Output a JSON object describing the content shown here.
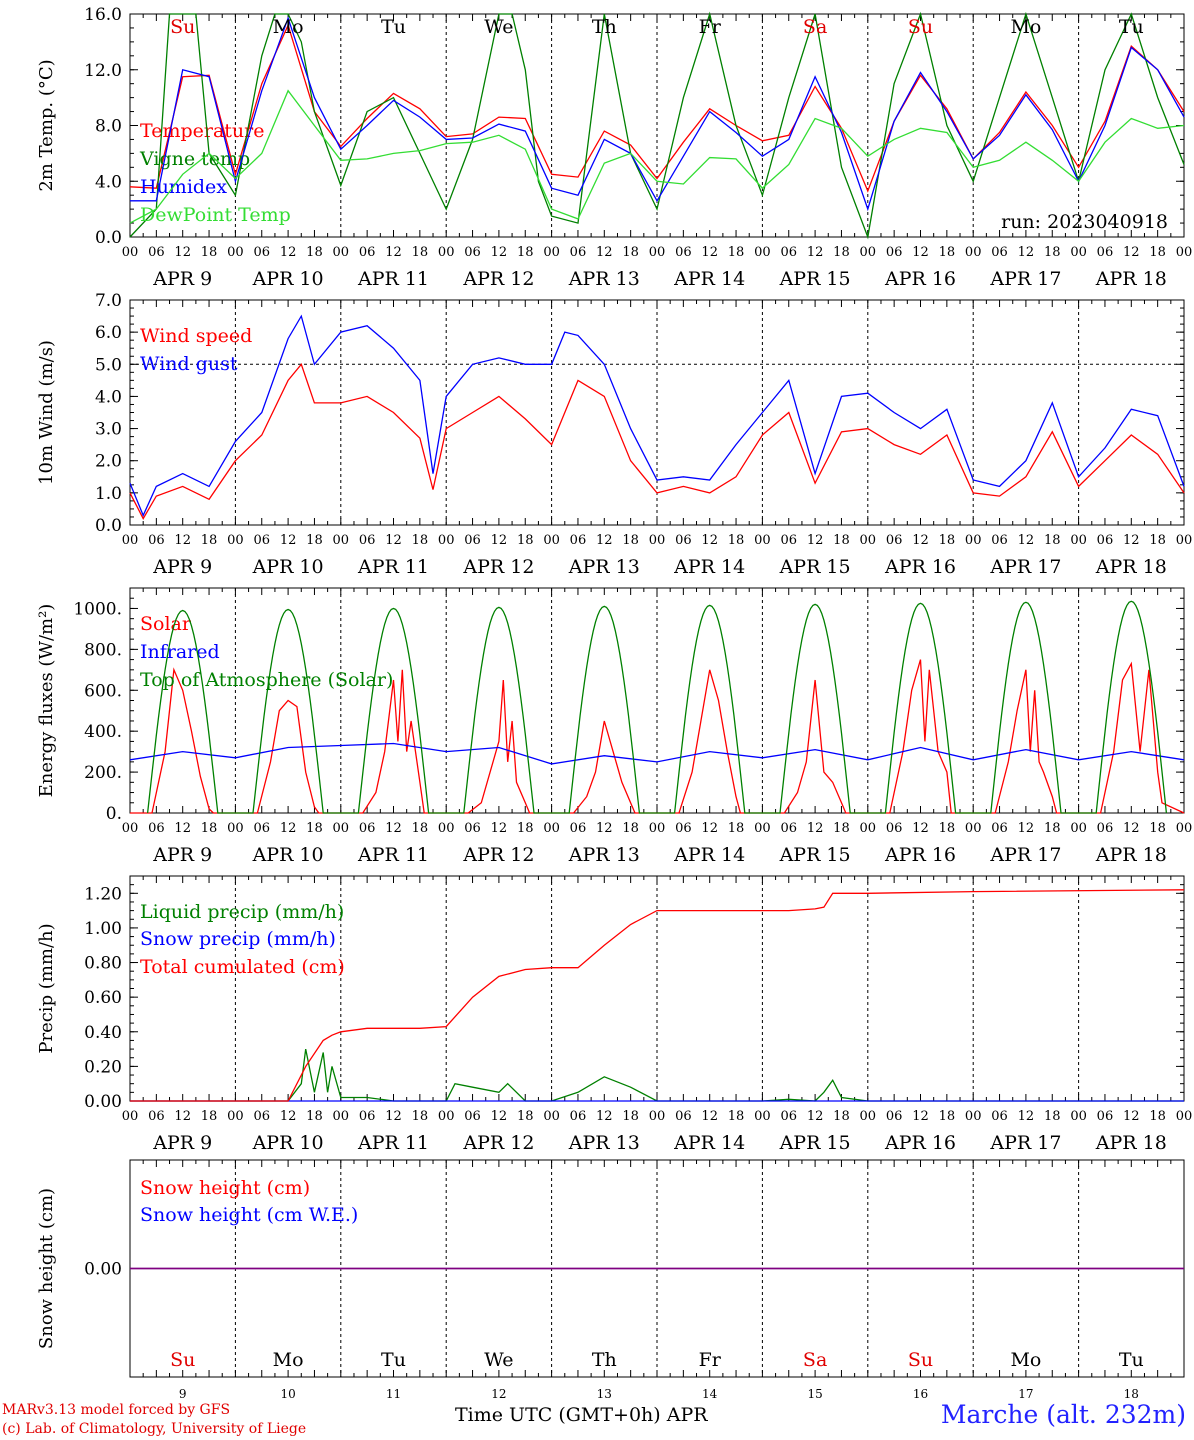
{
  "run_label": "run: 2023040918",
  "x_hours_ticks": [
    "00",
    "06",
    "12",
    "18"
  ],
  "dates": [
    "APR  9",
    "APR 10",
    "APR 11",
    "APR 12",
    "APR 13",
    "APR 14",
    "APR 15",
    "APR 16",
    "APR 17",
    "APR 18"
  ],
  "weekdays": [
    {
      "label": "Su",
      "color": "#e00000"
    },
    {
      "label": "Mo",
      "color": "#000000"
    },
    {
      "label": "Tu",
      "color": "#000000"
    },
    {
      "label": "We",
      "color": "#000000"
    },
    {
      "label": "Th",
      "color": "#000000"
    },
    {
      "label": "Fr",
      "color": "#000000"
    },
    {
      "label": "Sa",
      "color": "#e00000"
    },
    {
      "label": "Su",
      "color": "#e00000"
    },
    {
      "label": "Mo",
      "color": "#000000"
    },
    {
      "label": "Tu",
      "color": "#000000"
    }
  ],
  "day_numbers": [
    "9",
    "10",
    "11",
    "12",
    "13",
    "14",
    "15",
    "16",
    "17",
    "18"
  ],
  "footer": {
    "model_line1": "MARv3.13 model forced by GFS",
    "model_line2": "(c) Lab. of Climatology, University of Liege",
    "axis_title": "Time UTC (GMT+0h) APR",
    "station": "Marche (alt. 232m)"
  },
  "chart_data": [
    {
      "type": "line",
      "ylabel": "2m Temp. (°C)",
      "ylim": [
        0,
        16
      ],
      "yticks": [
        "0.0",
        "4.0",
        "8.0",
        "12.0",
        "16.0"
      ],
      "x_unit": "hours since Apr 9 00 UTC",
      "series": [
        {
          "name": "Temperature",
          "color": "#ff0000",
          "x": [
            0,
            6,
            12,
            18,
            24,
            30,
            36,
            42,
            48,
            54,
            60,
            66,
            72,
            78,
            84,
            90,
            96,
            102,
            108,
            114,
            120,
            126,
            132,
            138,
            144,
            150,
            156,
            162,
            168,
            174,
            180,
            186,
            192,
            198,
            204,
            210,
            216,
            222,
            228,
            234,
            240
          ],
          "y": [
            3.6,
            3.5,
            11.5,
            11.6,
            4.5,
            11,
            15.2,
            9,
            6.5,
            8.5,
            10.3,
            9.2,
            7.2,
            7.4,
            8.6,
            8.5,
            4.5,
            4.3,
            7.6,
            6.6,
            4.2,
            6.8,
            9.2,
            8,
            6.9,
            7.3,
            10.8,
            7.8,
            3.3,
            8.3,
            11.6,
            9.2,
            5.6,
            7.5,
            10.4,
            8,
            5,
            8.3,
            13.7,
            12,
            9
          ]
        },
        {
          "name": "Vigne temp",
          "color": "#008000",
          "x": [
            0,
            6,
            9,
            12,
            15,
            18,
            24,
            30,
            33,
            36,
            39,
            42,
            48,
            54,
            60,
            66,
            72,
            78,
            84,
            87,
            90,
            93,
            96,
            102,
            108,
            114,
            120,
            126,
            132,
            138,
            144,
            150,
            156,
            162,
            168,
            174,
            180,
            186,
            192,
            198,
            204,
            210,
            216,
            222,
            228,
            234,
            240
          ],
          "y": [
            0,
            2,
            16,
            16,
            16,
            6,
            3,
            13,
            16,
            16,
            14,
            9,
            3.7,
            9,
            10,
            6,
            2,
            7,
            16,
            16,
            12,
            4,
            1.5,
            1,
            16,
            6,
            2,
            10,
            16,
            8,
            3,
            10,
            16,
            5,
            0,
            11,
            16,
            8,
            4,
            10,
            16,
            10,
            4,
            12,
            16,
            10,
            5.2
          ]
        },
        {
          "name": "Humidex",
          "color": "#0000ff",
          "x": [
            0,
            6,
            12,
            18,
            24,
            30,
            36,
            42,
            48,
            54,
            60,
            66,
            72,
            78,
            84,
            90,
            96,
            102,
            108,
            114,
            120,
            126,
            132,
            138,
            144,
            150,
            156,
            162,
            168,
            174,
            180,
            186,
            192,
            198,
            204,
            210,
            216,
            222,
            228,
            234,
            240
          ],
          "y": [
            2.6,
            2.6,
            12,
            11.5,
            4,
            10.5,
            15.7,
            10,
            6.3,
            8,
            9.8,
            8.6,
            7,
            7.1,
            8.1,
            7.6,
            3.5,
            3,
            7,
            6,
            2.6,
            5.8,
            9,
            7.5,
            5.8,
            7,
            11.5,
            7.5,
            2,
            8.3,
            11.8,
            9,
            5.6,
            7.3,
            10.2,
            7.7,
            4,
            8,
            13.6,
            12,
            8.6
          ]
        },
        {
          "name": "DewPoint Temp",
          "color": "#33dd33",
          "x": [
            0,
            6,
            12,
            18,
            24,
            30,
            36,
            42,
            48,
            54,
            60,
            66,
            72,
            78,
            84,
            90,
            96,
            102,
            108,
            114,
            120,
            126,
            132,
            138,
            144,
            150,
            156,
            162,
            168,
            174,
            180,
            186,
            192,
            198,
            204,
            210,
            216,
            222,
            228,
            234,
            240
          ],
          "y": [
            1,
            2,
            4.5,
            6,
            4.2,
            6,
            10.5,
            8,
            5.5,
            5.6,
            6,
            6.2,
            6.7,
            6.8,
            7.3,
            6.3,
            2,
            1.3,
            5.3,
            6,
            4,
            3.8,
            5.7,
            5.6,
            3.5,
            5.2,
            8.5,
            7.8,
            5.8,
            7,
            7.8,
            7.5,
            5,
            5.5,
            6.8,
            5.5,
            4,
            6.8,
            8.5,
            7.8,
            8
          ]
        }
      ]
    },
    {
      "type": "line",
      "ylabel": "10m Wind (m/s)",
      "ylim": [
        0,
        7
      ],
      "yticks": [
        "0.0",
        "1.0",
        "2.0",
        "3.0",
        "4.0",
        "5.0",
        "6.0",
        "7.0"
      ],
      "ref_line": 5.0,
      "x_unit": "hours since Apr 9 00 UTC",
      "series": [
        {
          "name": "Wind speed",
          "color": "#ff0000",
          "x": [
            0,
            3,
            6,
            12,
            18,
            24,
            30,
            36,
            39,
            42,
            48,
            54,
            60,
            66,
            69,
            72,
            78,
            84,
            90,
            96,
            99,
            102,
            108,
            114,
            120,
            126,
            132,
            138,
            144,
            150,
            156,
            162,
            168,
            174,
            180,
            186,
            192,
            198,
            204,
            210,
            216,
            222,
            228,
            234,
            240
          ],
          "y": [
            1,
            0.2,
            0.9,
            1.2,
            0.8,
            2,
            2.8,
            4.5,
            5,
            3.8,
            3.8,
            4,
            3.5,
            2.7,
            1.1,
            3,
            3.5,
            4,
            3.3,
            2.5,
            3.5,
            4.5,
            4,
            2,
            1,
            1.2,
            1,
            1.5,
            2.8,
            3.5,
            1.3,
            2.9,
            3,
            2.5,
            2.2,
            2.8,
            1,
            0.9,
            1.5,
            2.9,
            1.2,
            2,
            2.8,
            2.2,
            1
          ]
        },
        {
          "name": "Wind gust",
          "color": "#0000ff",
          "x": [
            0,
            3,
            6,
            12,
            18,
            24,
            30,
            36,
            39,
            42,
            48,
            54,
            60,
            66,
            69,
            72,
            78,
            84,
            90,
            96,
            99,
            102,
            108,
            114,
            120,
            126,
            132,
            138,
            144,
            150,
            156,
            162,
            168,
            174,
            180,
            186,
            192,
            198,
            204,
            210,
            216,
            222,
            228,
            234,
            240
          ],
          "y": [
            1.3,
            0.3,
            1.2,
            1.6,
            1.2,
            2.6,
            3.5,
            5.8,
            6.5,
            5,
            6,
            6.2,
            5.5,
            4.5,
            1.6,
            4,
            5,
            5.2,
            5,
            5,
            6,
            5.9,
            5,
            3,
            1.4,
            1.5,
            1.4,
            2.5,
            3.5,
            4.5,
            1.6,
            4,
            4.1,
            3.5,
            3,
            3.6,
            1.4,
            1.2,
            2,
            3.8,
            1.5,
            2.4,
            3.6,
            3.4,
            1.2
          ]
        }
      ]
    },
    {
      "type": "line",
      "ylabel": "Energy fluxes (W/m²)",
      "ylim": [
        0,
        1100
      ],
      "yticks": [
        "0.",
        "200.",
        "400.",
        "600.",
        "800.",
        "1000."
      ],
      "x_unit": "hours since Apr 9 00 UTC",
      "series": [
        {
          "name": "Solar",
          "color": "#ff0000",
          "x": [
            0,
            5,
            8,
            10,
            12,
            14,
            16,
            18,
            19,
            24,
            29,
            32,
            34,
            36,
            38,
            40,
            42,
            43,
            48,
            53,
            56,
            58,
            60,
            61,
            62,
            63,
            64,
            66,
            67,
            72,
            77,
            80,
            82,
            84,
            85,
            86,
            87,
            88,
            90,
            91,
            96,
            101,
            104,
            106,
            108,
            110,
            112,
            114,
            115,
            120,
            125,
            128,
            130,
            132,
            134,
            136,
            138,
            139,
            144,
            149,
            152,
            154,
            156,
            158,
            160,
            162,
            163,
            168,
            173,
            176,
            178,
            180,
            181,
            182,
            184,
            186,
            187,
            192,
            197,
            200,
            202,
            204,
            205,
            206,
            207,
            208,
            210,
            211,
            216,
            221,
            224,
            226,
            228,
            230,
            232,
            234,
            235,
            240
          ],
          "y": [
            0,
            0,
            300,
            700,
            600,
            400,
            180,
            20,
            0,
            0,
            0,
            250,
            500,
            550,
            520,
            200,
            30,
            0,
            0,
            0,
            100,
            300,
            650,
            350,
            700,
            300,
            450,
            150,
            0,
            0,
            0,
            50,
            200,
            350,
            650,
            250,
            450,
            150,
            50,
            0,
            0,
            0,
            80,
            200,
            450,
            300,
            150,
            50,
            0,
            0,
            0,
            200,
            450,
            700,
            550,
            300,
            80,
            0,
            0,
            0,
            100,
            250,
            650,
            200,
            150,
            50,
            0,
            0,
            0,
            300,
            600,
            750,
            350,
            700,
            300,
            200,
            0,
            0,
            0,
            250,
            500,
            700,
            300,
            600,
            250,
            200,
            80,
            0,
            0,
            0,
            300,
            650,
            730,
            300,
            700,
            200,
            50,
            0
          ]
        },
        {
          "name": "Infrared",
          "color": "#0000ff",
          "x": [
            0,
            12,
            24,
            36,
            48,
            60,
            72,
            84,
            96,
            108,
            120,
            132,
            144,
            156,
            168,
            180,
            192,
            204,
            216,
            228,
            240
          ],
          "y": [
            260,
            300,
            270,
            320,
            330,
            340,
            300,
            320,
            240,
            280,
            250,
            300,
            270,
            310,
            260,
            320,
            260,
            310,
            260,
            300,
            260
          ]
        },
        {
          "name": "Top of Atmosphere (Solar)",
          "color": "#008000",
          "x": [],
          "y": [],
          "daily_peak_wm2": [
            990,
            995,
            1000,
            1005,
            1010,
            1015,
            1020,
            1025,
            1030,
            1035
          ]
        }
      ]
    },
    {
      "type": "line",
      "ylabel": "Precip (mm/h)",
      "ylim": [
        0,
        1.3
      ],
      "yticks": [
        "0.00",
        "0.20",
        "0.40",
        "0.60",
        "0.80",
        "1.00",
        "1.20"
      ],
      "x_unit": "hours since Apr 9 00 UTC",
      "series": [
        {
          "name": "Liquid precip (mm/h)",
          "color": "#008000",
          "x": [
            0,
            36,
            39,
            40,
            42,
            44,
            45,
            46,
            48,
            54,
            60,
            72,
            74,
            78,
            84,
            86,
            90,
            96,
            102,
            108,
            114,
            120,
            126,
            132,
            144,
            150,
            156,
            158,
            160,
            162,
            168,
            240
          ],
          "y": [
            0,
            0,
            0.1,
            0.3,
            0.05,
            0.28,
            0.05,
            0.2,
            0.02,
            0.02,
            0,
            0,
            0.1,
            0.08,
            0.05,
            0.1,
            0,
            0,
            0.05,
            0.14,
            0.08,
            0,
            0,
            0,
            0,
            0.01,
            0,
            0.05,
            0.12,
            0.02,
            0,
            0
          ]
        },
        {
          "name": "Snow precip (mm/h)",
          "color": "#0000ff",
          "x": [
            0,
            240
          ],
          "y": [
            0,
            0
          ]
        },
        {
          "name": "Total cumulated (cm)",
          "color": "#ff0000",
          "x": [
            0,
            36,
            40,
            44,
            46,
            48,
            54,
            60,
            66,
            72,
            78,
            84,
            90,
            96,
            102,
            108,
            114,
            120,
            126,
            132,
            138,
            144,
            150,
            156,
            158,
            160,
            168,
            192,
            240
          ],
          "y": [
            0,
            0,
            0.2,
            0.35,
            0.38,
            0.4,
            0.42,
            0.42,
            0.42,
            0.43,
            0.6,
            0.72,
            0.76,
            0.77,
            0.77,
            0.9,
            1.02,
            1.1,
            1.1,
            1.1,
            1.1,
            1.1,
            1.1,
            1.11,
            1.12,
            1.2,
            1.2,
            1.21,
            1.22
          ]
        }
      ]
    },
    {
      "type": "line",
      "ylabel": "Snow height (cm)",
      "yticks": [
        "0.00"
      ],
      "x_unit": "hours since Apr 9 00 UTC",
      "series": [
        {
          "name": "Snow height (cm)",
          "color": "#ff0000",
          "x": [
            0,
            240
          ],
          "y": [
            0,
            0
          ]
        },
        {
          "name": "Snow height (cm W.E.)",
          "color": "#0000ff",
          "x": [
            0,
            240
          ],
          "y": [
            0,
            0
          ]
        }
      ]
    }
  ]
}
